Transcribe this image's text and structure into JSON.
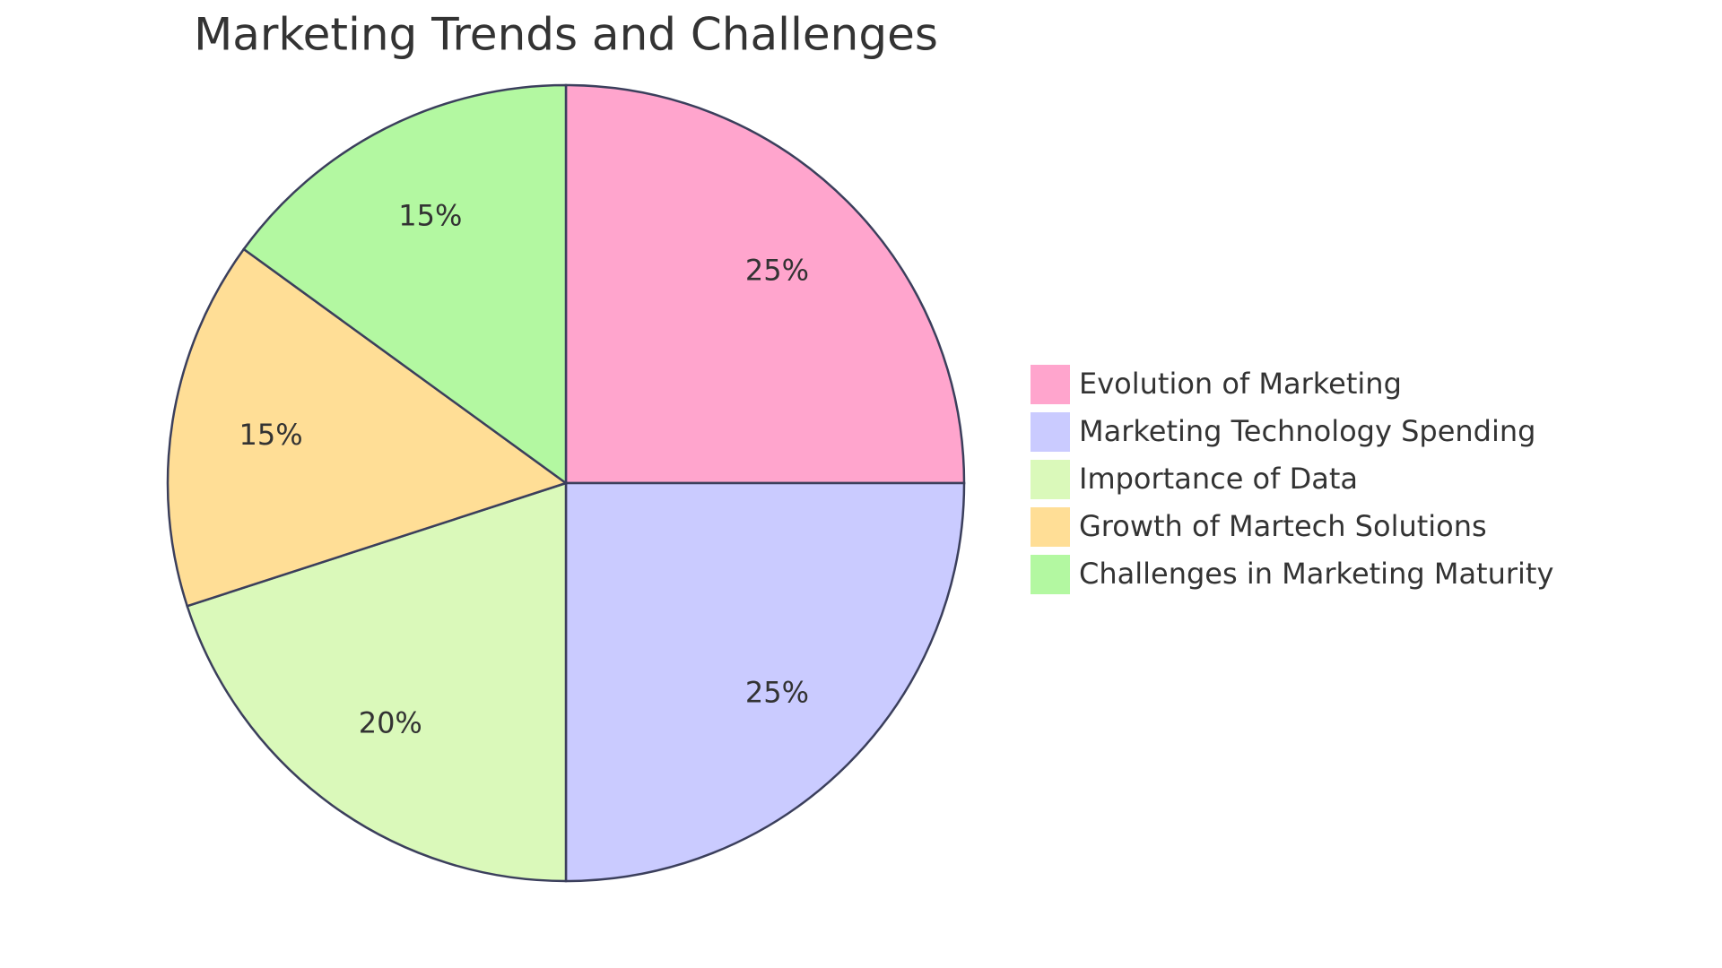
{
  "chart_data": {
    "type": "pie",
    "title": "Marketing Trends and Challenges",
    "categories": [
      "Evolution of Marketing",
      "Marketing Technology Spending",
      "Importance of Data",
      "Growth of Martech Solutions",
      "Challenges in Marketing Maturity"
    ],
    "values": [
      25,
      25,
      20,
      15,
      15
    ],
    "value_labels": [
      "25%",
      "25%",
      "20%",
      "15%",
      "15%"
    ],
    "colors": [
      "#FFA5CD",
      "#CACBFF",
      "#DAF9BA",
      "#FFDE96",
      "#B3F8A1"
    ],
    "legend": "right"
  }
}
